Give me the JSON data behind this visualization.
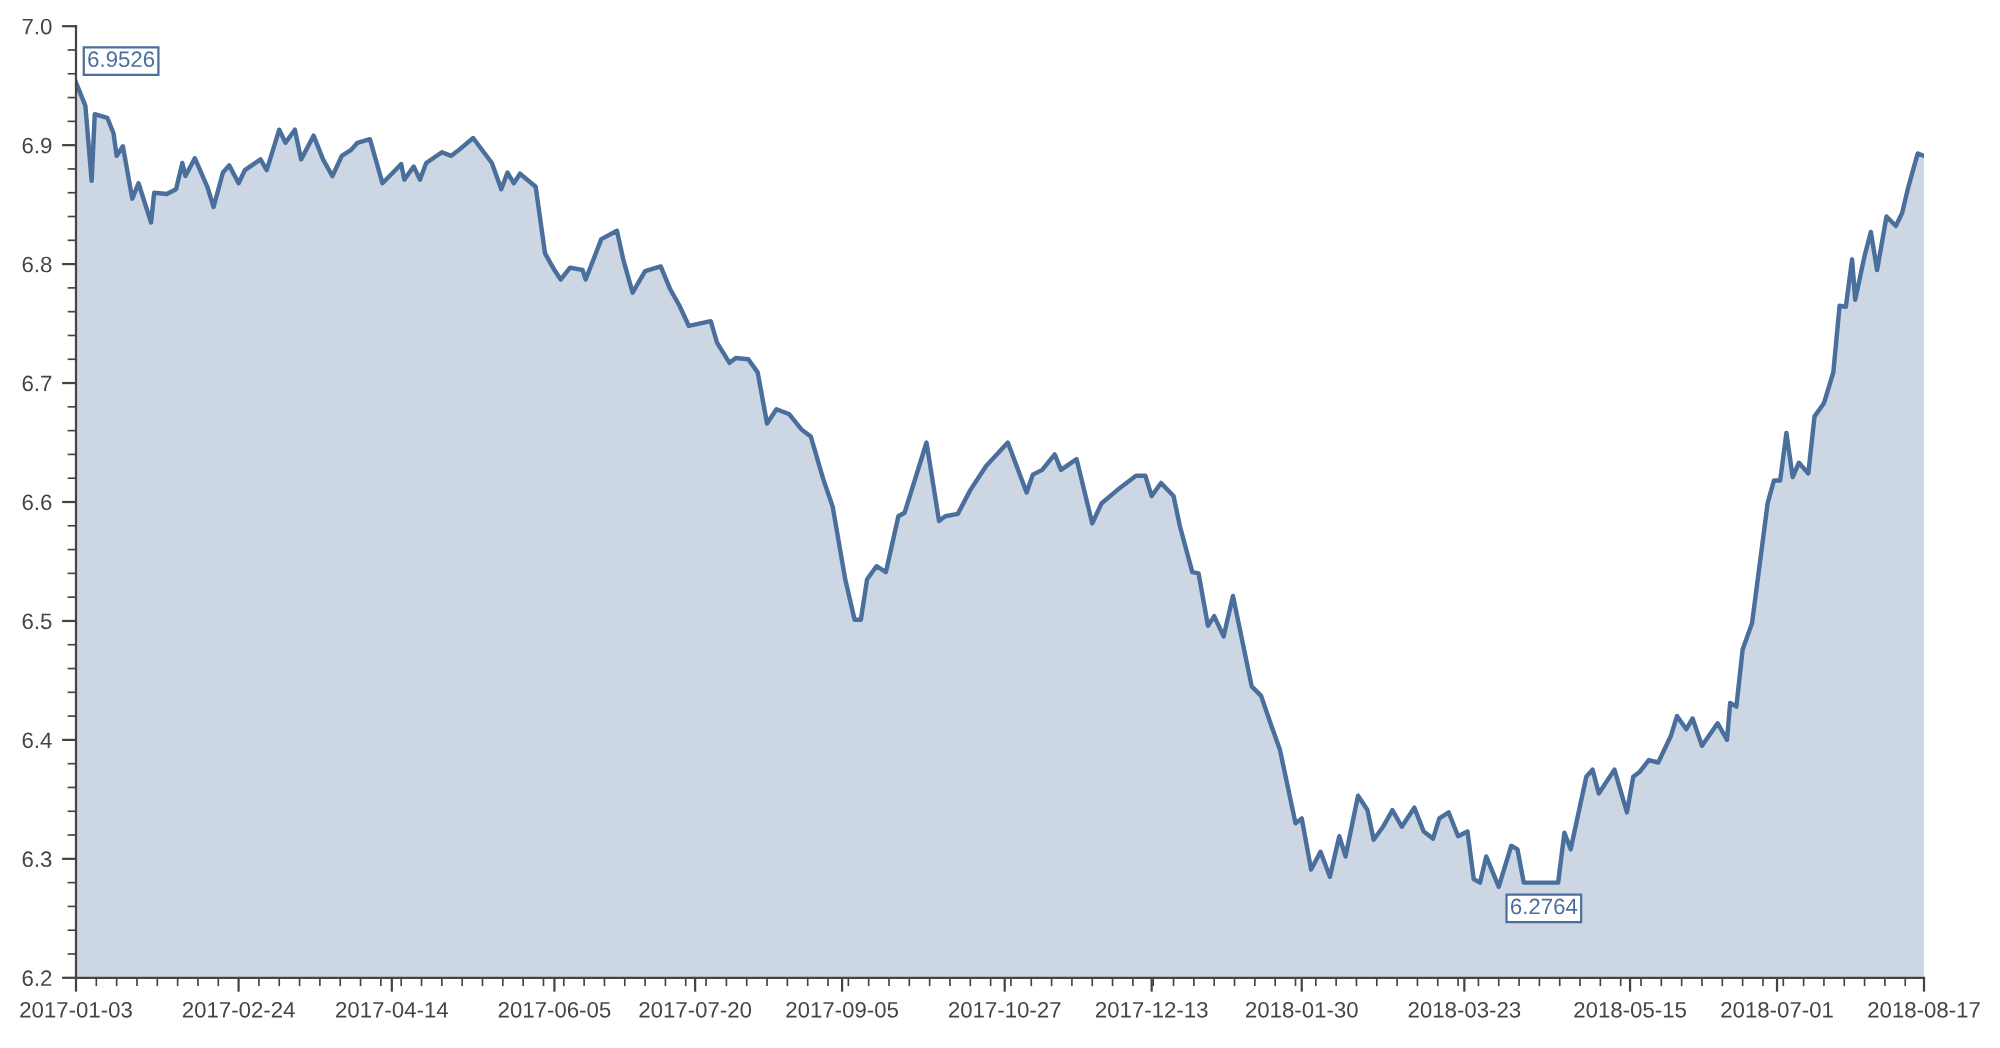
{
  "chart_data": {
    "type": "area",
    "x": [
      "2017-01-03",
      "2017-01-06",
      "2017-01-08",
      "2017-01-09",
      "2017-01-13",
      "2017-01-15",
      "2017-01-16",
      "2017-01-18",
      "2017-01-21",
      "2017-01-23",
      "2017-01-27",
      "2017-01-28",
      "2017-02-01",
      "2017-02-04",
      "2017-02-06",
      "2017-02-07",
      "2017-02-10",
      "2017-02-14",
      "2017-02-16",
      "2017-02-19",
      "2017-02-21",
      "2017-02-24",
      "2017-02-26",
      "2017-03-03",
      "2017-03-05",
      "2017-03-09",
      "2017-03-11",
      "2017-03-14",
      "2017-03-16",
      "2017-03-20",
      "2017-03-23",
      "2017-03-26",
      "2017-03-29",
      "2017-04-01",
      "2017-04-03",
      "2017-04-07",
      "2017-04-11",
      "2017-04-14",
      "2017-04-17",
      "2017-04-18",
      "2017-04-21",
      "2017-04-23",
      "2017-04-25",
      "2017-04-30",
      "2017-05-03",
      "2017-05-05",
      "2017-05-10",
      "2017-05-16",
      "2017-05-19",
      "2017-05-21",
      "2017-05-23",
      "2017-05-25",
      "2017-05-30",
      "2017-06-02",
      "2017-06-05",
      "2017-06-07",
      "2017-06-10",
      "2017-06-14",
      "2017-06-15",
      "2017-06-20",
      "2017-06-25",
      "2017-06-27",
      "2017-06-30",
      "2017-07-04",
      "2017-07-09",
      "2017-07-12",
      "2017-07-15",
      "2017-07-18",
      "2017-07-25",
      "2017-07-27",
      "2017-07-31",
      "2017-08-02",
      "2017-08-06",
      "2017-08-09",
      "2017-08-12",
      "2017-08-15",
      "2017-08-19",
      "2017-08-23",
      "2017-08-26",
      "2017-08-30",
      "2017-09-02",
      "2017-09-06",
      "2017-09-09",
      "2017-09-11",
      "2017-09-13",
      "2017-09-16",
      "2017-09-19",
      "2017-09-23",
      "2017-09-25",
      "2017-10-02",
      "2017-10-06",
      "2017-10-08",
      "2017-10-12",
      "2017-10-16",
      "2017-10-21",
      "2017-10-28",
      "2017-11-03",
      "2017-11-05",
      "2017-11-08",
      "2017-11-12",
      "2017-11-14",
      "2017-11-19",
      "2017-11-24",
      "2017-11-27",
      "2017-12-02",
      "2017-12-08",
      "2017-12-11",
      "2017-12-13",
      "2017-12-16",
      "2017-12-20",
      "2017-12-22",
      "2017-12-26",
      "2017-12-28",
      "2017-12-31",
      "2018-01-02",
      "2018-01-05",
      "2018-01-08",
      "2018-01-14",
      "2018-01-17",
      "2018-01-20",
      "2018-01-23",
      "2018-01-28",
      "2018-01-30",
      "2018-02-02",
      "2018-02-05",
      "2018-02-08",
      "2018-02-11",
      "2018-02-13",
      "2018-02-17",
      "2018-02-20",
      "2018-02-22",
      "2018-02-25",
      "2018-02-28",
      "2018-03-03",
      "2018-03-07",
      "2018-03-10",
      "2018-03-13",
      "2018-03-15",
      "2018-03-18",
      "2018-03-21",
      "2018-03-24",
      "2018-03-26",
      "2018-03-28",
      "2018-03-30",
      "2018-04-03",
      "2018-04-07",
      "2018-04-09",
      "2018-04-11",
      "2018-04-22",
      "2018-04-24",
      "2018-04-26",
      "2018-05-01",
      "2018-05-03",
      "2018-05-05",
      "2018-05-10",
      "2018-05-14",
      "2018-05-16",
      "2018-05-18",
      "2018-05-21",
      "2018-05-24",
      "2018-05-28",
      "2018-05-30",
      "2018-06-02",
      "2018-06-04",
      "2018-06-07",
      "2018-06-12",
      "2018-06-15",
      "2018-06-16",
      "2018-06-18",
      "2018-06-20",
      "2018-06-23",
      "2018-06-28",
      "2018-06-30",
      "2018-07-02",
      "2018-07-04",
      "2018-07-06",
      "2018-07-08",
      "2018-07-11",
      "2018-07-13",
      "2018-07-16",
      "2018-07-19",
      "2018-07-21",
      "2018-07-23",
      "2018-07-25",
      "2018-07-26",
      "2018-07-29",
      "2018-07-31",
      "2018-08-02",
      "2018-08-05",
      "2018-08-08",
      "2018-08-10",
      "2018-08-12",
      "2018-08-15",
      "2018-08-17"
    ],
    "series": [
      {
        "color": "#4a6f9c",
        "values": [
          6.9526,
          6.933,
          6.87,
          6.926,
          6.923,
          6.91,
          6.891,
          6.899,
          6.855,
          6.868,
          6.835,
          6.86,
          6.859,
          6.863,
          6.885,
          6.874,
          6.889,
          6.865,
          6.848,
          6.877,
          6.883,
          6.868,
          6.879,
          6.888,
          6.879,
          6.913,
          6.902,
          6.913,
          6.888,
          6.908,
          6.888,
          6.874,
          6.891,
          6.896,
          6.902,
          6.905,
          6.868,
          6.876,
          6.884,
          6.871,
          6.882,
          6.871,
          6.885,
          6.894,
          6.891,
          6.895,
          6.906,
          6.885,
          6.863,
          6.877,
          6.868,
          6.876,
          6.865,
          6.809,
          6.795,
          6.787,
          6.797,
          6.795,
          6.787,
          6.821,
          6.828,
          6.804,
          6.776,
          6.794,
          6.798,
          6.779,
          6.765,
          6.748,
          6.752,
          6.734,
          6.717,
          6.721,
          6.72,
          6.709,
          6.666,
          6.678,
          6.674,
          6.661,
          6.655,
          6.619,
          6.596,
          6.535,
          6.501,
          6.501,
          6.535,
          6.546,
          6.541,
          6.588,
          6.591,
          6.65,
          6.584,
          6.588,
          6.59,
          6.61,
          6.63,
          6.65,
          6.608,
          6.623,
          6.627,
          6.64,
          6.627,
          6.636,
          6.582,
          6.599,
          6.61,
          6.622,
          6.622,
          6.605,
          6.616,
          6.605,
          6.58,
          6.541,
          6.54,
          6.496,
          6.504,
          6.487,
          6.521,
          6.445,
          6.437,
          6.414,
          6.392,
          6.33,
          6.334,
          6.291,
          6.306,
          6.285,
          6.319,
          6.302,
          6.353,
          6.341,
          6.316,
          6.327,
          6.341,
          6.327,
          6.343,
          6.323,
          6.317,
          6.334,
          6.339,
          6.319,
          6.323,
          6.283,
          6.28,
          6.302,
          6.2764,
          6.311,
          6.308,
          6.28,
          6.28,
          6.322,
          6.308,
          6.369,
          6.375,
          6.355,
          6.375,
          6.339,
          6.369,
          6.373,
          6.383,
          6.381,
          6.403,
          6.42,
          6.409,
          6.418,
          6.395,
          6.414,
          6.4,
          6.431,
          6.428,
          6.476,
          6.498,
          6.599,
          6.618,
          6.618,
          6.658,
          6.621,
          6.633,
          6.624,
          6.672,
          6.683,
          6.709,
          6.765,
          6.764,
          6.804,
          6.77,
          6.807,
          6.827,
          6.795,
          6.84,
          6.832,
          6.843,
          6.865,
          6.893,
          6.891
        ]
      }
    ],
    "xlim": [
      "2017-01-03",
      "2018-08-17"
    ],
    "xticks": [
      "2017-01-03",
      "2017-02-24",
      "2017-04-14",
      "2017-06-05",
      "2017-07-20",
      "2017-09-05",
      "2017-10-27",
      "2017-12-13",
      "2018-01-30",
      "2018-03-23",
      "2018-05-15",
      "2018-07-01",
      "2018-08-17"
    ],
    "ylim": [
      6.2,
      7.0
    ],
    "yticks": [
      6.2,
      6.3,
      6.4,
      6.5,
      6.6,
      6.7,
      6.8,
      6.9,
      {
        "value": 7.0,
        "label": "7.0"
      }
    ],
    "annotations": [
      {
        "text": "6.9526",
        "x": "2017-01-03",
        "y": 6.9526
      },
      {
        "text": "6.2764",
        "x": "2018-04-03",
        "y": 6.2764
      }
    ],
    "grid": false,
    "legend": false
  }
}
